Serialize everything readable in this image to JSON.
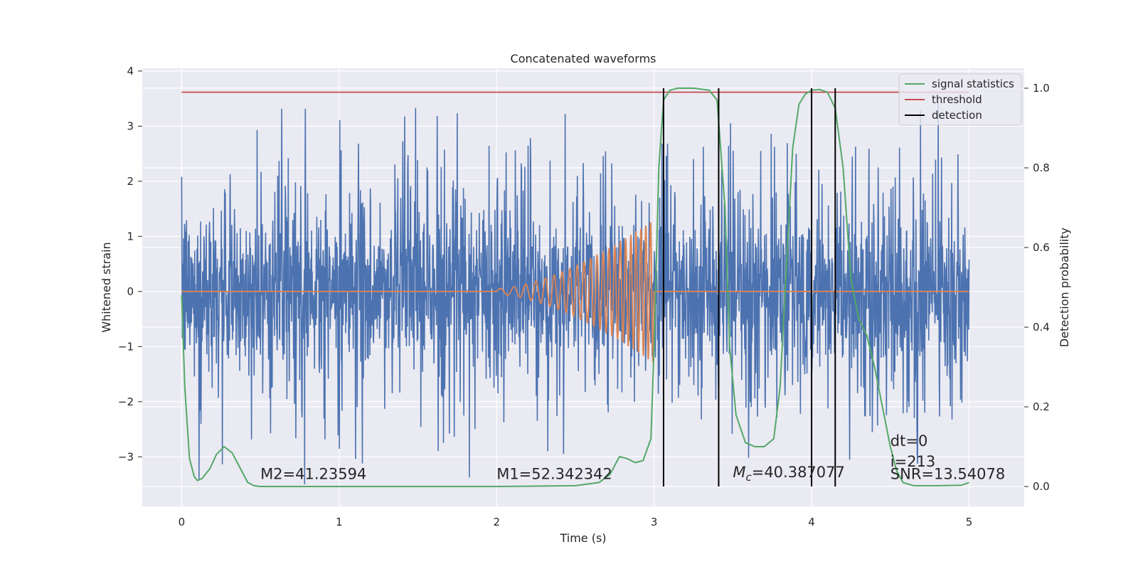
{
  "chart_data": {
    "type": "line",
    "title": "Concatenated waveforms",
    "xlabel": "Time (s)",
    "ylabel": "Whitened strain",
    "ylabel_right": "Detection probability",
    "xlim": [
      -0.25,
      5.35
    ],
    "ylim": [
      -3.9,
      4.05
    ],
    "ylim_right": [
      -0.05,
      1.05
    ],
    "xticks": [
      0,
      1,
      2,
      3,
      4,
      5
    ],
    "yticks": [
      -3,
      -2,
      -1,
      0,
      1,
      2,
      3,
      4
    ],
    "yticks_right": [
      0.0,
      0.2,
      0.4,
      0.6,
      0.8,
      1.0
    ],
    "grid": true,
    "legend_position": "top-right",
    "legend": [
      {
        "label": "signal statistics",
        "color": "#55a868"
      },
      {
        "label": "threshold",
        "color": "#c44e52"
      },
      {
        "label": "detection",
        "color": "#000000"
      }
    ],
    "series": [
      {
        "type": "noise",
        "color": "#4c72b0",
        "x_range": [
          0,
          5
        ],
        "noise_std": 0.75,
        "spike_range": [
          -3.6,
          3.7
        ]
      },
      {
        "type": "chirp",
        "color": "#dd8452",
        "x_start": 2.0,
        "x_end": 3.0,
        "amp_start": 0.05,
        "amp_end": 1.3
      },
      {
        "name": "threshold",
        "color": "#c44e52",
        "axis": "right",
        "x": [
          0,
          5
        ],
        "y": [
          0.99,
          0.99
        ]
      },
      {
        "name": "signal statistics",
        "color": "#55a868",
        "axis": "right",
        "x": [
          0,
          0.02,
          0.05,
          0.08,
          0.1,
          0.13,
          0.18,
          0.22,
          0.27,
          0.32,
          0.38,
          0.42,
          0.46,
          0.5,
          1.0,
          1.5,
          2.0,
          2.5,
          2.65,
          2.72,
          2.78,
          2.83,
          2.88,
          2.93,
          2.98,
          3.0,
          3.03,
          3.06,
          3.1,
          3.15,
          3.25,
          3.35,
          3.4,
          3.45,
          3.48,
          3.52,
          3.58,
          3.64,
          3.7,
          3.76,
          3.8,
          3.84,
          3.88,
          3.92,
          3.96,
          4.0,
          4.05,
          4.1,
          4.15,
          4.2,
          4.25,
          4.3,
          4.35,
          4.4,
          4.45,
          4.5,
          4.54,
          4.58,
          4.65,
          4.8,
          4.95,
          5.0
        ],
        "y": [
          0.48,
          0.25,
          0.07,
          0.025,
          0.015,
          0.02,
          0.045,
          0.08,
          0.1,
          0.085,
          0.04,
          0.01,
          0.002,
          0.0,
          0.0,
          0.0,
          0.0,
          0.002,
          0.01,
          0.03,
          0.075,
          0.07,
          0.06,
          0.065,
          0.12,
          0.35,
          0.8,
          0.97,
          0.995,
          1.0,
          1.0,
          0.995,
          0.97,
          0.7,
          0.35,
          0.18,
          0.11,
          0.1,
          0.1,
          0.12,
          0.25,
          0.55,
          0.85,
          0.96,
          0.985,
          0.995,
          0.997,
          0.99,
          0.95,
          0.8,
          0.52,
          0.42,
          0.38,
          0.3,
          0.2,
          0.1,
          0.04,
          0.01,
          0.002,
          0.002,
          0.003,
          0.01
        ]
      }
    ],
    "detections": [
      3.06,
      3.41,
      4.0,
      4.15
    ],
    "annotations": [
      {
        "text": "M2=41.23594",
        "x": 0.5,
        "y": -3.4
      },
      {
        "text": "M1=52.342342",
        "x": 2.0,
        "y": -3.4
      },
      {
        "text_main": "M",
        "text_sub": "c",
        "text_rest": "=40.387077",
        "x": 3.5,
        "y": -3.37
      },
      {
        "text": "dt=0",
        "x": 4.5,
        "y": -2.8
      },
      {
        "text": "i=213",
        "x": 4.5,
        "y": -3.18
      },
      {
        "text": "SNR=13.54078",
        "x": 4.5,
        "y": -3.4
      }
    ]
  }
}
